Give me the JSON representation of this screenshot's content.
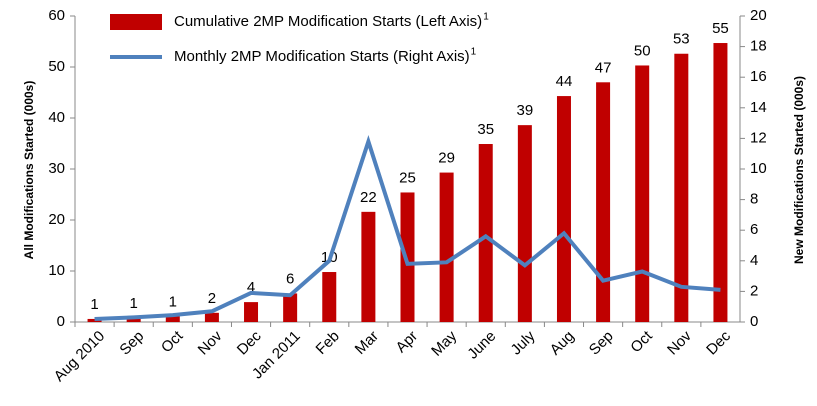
{
  "chart_data": {
    "type": "bar_line",
    "categories": [
      "Aug 2010",
      "Sep",
      "Oct",
      "Nov",
      "Dec",
      "Jan 2011",
      "Feb",
      "Mar",
      "Apr",
      "May",
      "June",
      "July",
      "Aug",
      "Sep",
      "Oct",
      "Nov",
      "Dec"
    ],
    "series": [
      {
        "name": "Cumulative 2MP Modification Starts (Left Axis)",
        "note": "1",
        "type": "bar",
        "color": "#c00000",
        "values": [
          0.6,
          0.8,
          1.1,
          1.8,
          3.9,
          5.6,
          9.8,
          21.6,
          25.4,
          29.3,
          34.9,
          38.6,
          44.3,
          47.0,
          50.3,
          52.6,
          54.7
        ],
        "value_labels": [
          "1",
          "1",
          "1",
          "2",
          "4",
          "6",
          "10",
          "22",
          "25",
          "29",
          "35",
          "39",
          "44",
          "47",
          "50",
          "53",
          "55"
        ]
      },
      {
        "name": "Monthly 2MP Modification Starts (Right Axis)",
        "note": "1",
        "type": "line",
        "color": "#4f81bd",
        "axis": "y2",
        "values": [
          0.2,
          0.3,
          0.45,
          0.7,
          1.9,
          1.75,
          4.0,
          11.8,
          3.8,
          3.9,
          5.6,
          3.7,
          5.8,
          2.7,
          3.3,
          2.3,
          2.1
        ]
      }
    ],
    "ylabel": "All Modifications Started (000s)",
    "y2label": "New Modifications Started (000s)",
    "ylim": [
      0,
      60
    ],
    "yticks": [
      0,
      10,
      20,
      30,
      40,
      50,
      60
    ],
    "y2lim": [
      0,
      20
    ],
    "y2ticks": [
      0,
      2,
      4,
      6,
      8,
      10,
      12,
      14,
      16,
      18,
      20
    ]
  }
}
